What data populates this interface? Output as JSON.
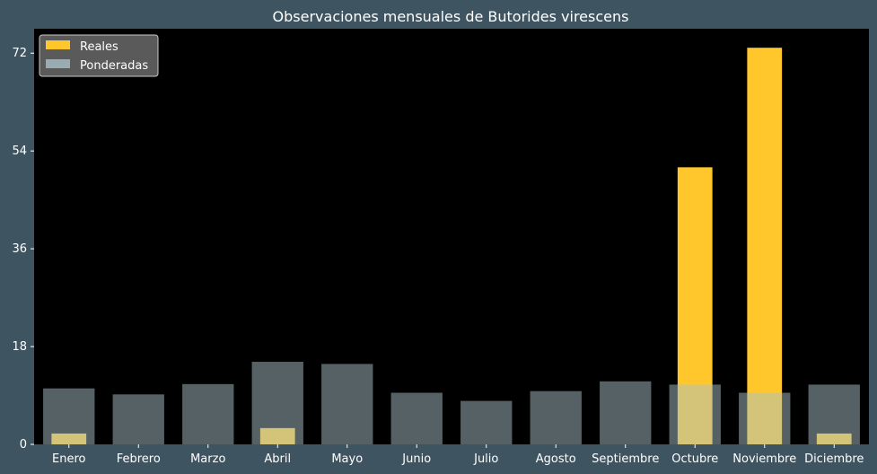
{
  "colors": {
    "background": "#3f5461",
    "plot_area": "#000000",
    "reales": "#ffc72c",
    "ponderadas": "#a9c1c8",
    "text": "#ffffff"
  },
  "chart_data": {
    "type": "bar",
    "title": "Observaciones mensuales de Butorides virescens",
    "xlabel": "",
    "ylabel": "",
    "categories": [
      "Enero",
      "Febrero",
      "Marzo",
      "Abril",
      "Mayo",
      "Junio",
      "Julio",
      "Agosto",
      "Septiembre",
      "Octubre",
      "Noviembre",
      "Diciembre"
    ],
    "series": [
      {
        "name": "Reales",
        "values": [
          2,
          0,
          0,
          3,
          0,
          0,
          0,
          0,
          0,
          51,
          73,
          2
        ]
      },
      {
        "name": "Ponderadas",
        "values": [
          10.3,
          9.2,
          11.1,
          15.2,
          14.8,
          9.5,
          8.0,
          9.8,
          11.6,
          11.0,
          9.5,
          11.0
        ]
      }
    ],
    "ylim": [
      0,
      76.5
    ],
    "yticks": [
      0,
      18,
      36,
      54,
      72
    ],
    "legend": {
      "position": "top-left",
      "entries": [
        "Reales",
        "Ponderadas"
      ]
    },
    "grid": false
  }
}
